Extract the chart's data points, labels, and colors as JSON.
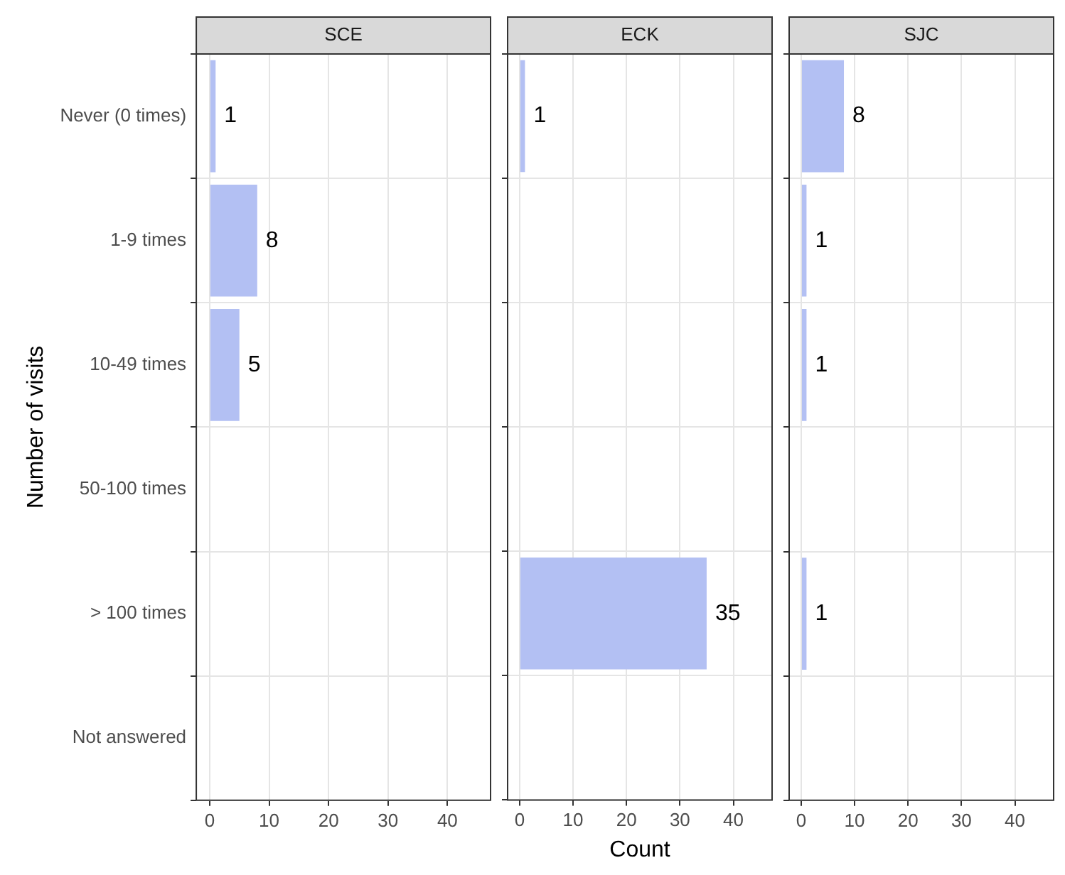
{
  "chart_data": [
    {
      "type": "bar",
      "orientation": "horizontal",
      "title": "SCE",
      "ylabel": "Number of visits",
      "categories": [
        "Never (0 times)",
        "1-9 times",
        "10-49 times",
        "50-100 times",
        "> 100 times",
        "Not answered"
      ],
      "values": [
        1,
        8,
        5,
        null,
        null,
        null
      ],
      "color": "#b3c0f3",
      "xlim": [
        -2.25,
        47.25
      ],
      "xticks": [
        0,
        10,
        20,
        30,
        40
      ],
      "grid": true,
      "data_labels": true
    },
    {
      "type": "bar",
      "orientation": "horizontal",
      "title": "ECK",
      "xlabel": "Count",
      "categories": [
        null,
        null,
        null,
        null,
        null,
        null
      ],
      "values": [
        1,
        null,
        null,
        null,
        35,
        null
      ],
      "color": "#b3c0f3",
      "xlim": [
        -2.25,
        47.25
      ],
      "xticks": [
        0,
        10,
        20,
        30,
        40
      ],
      "grid": true,
      "data_labels": true,
      "tick_labels": "x"
    },
    {
      "type": "bar",
      "orientation": "horizontal",
      "title": "SJC",
      "categories": [
        null,
        null,
        null,
        null,
        null,
        null
      ],
      "values": [
        8,
        1,
        1,
        null,
        1,
        null
      ],
      "color": "#b3c0f3",
      "xlim": [
        -2.25,
        47.25
      ],
      "xticks": [
        0,
        10,
        20,
        30,
        40
      ],
      "grid": true,
      "data_labels": true,
      "tick_labels": "x"
    }
  ]
}
